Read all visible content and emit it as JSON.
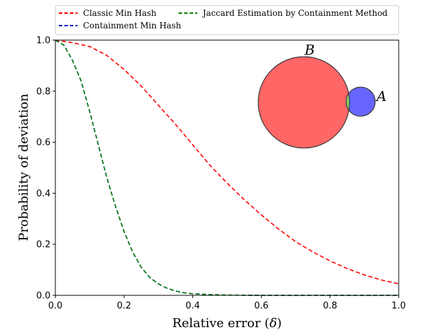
{
  "chart_data": {
    "type": "line",
    "title": "",
    "xlabel_main": "Relative error (",
    "xlabel_symbol": "δ",
    "xlabel_close": ")",
    "ylabel": "Probability of deviation",
    "xlim": [
      0.0,
      1.0
    ],
    "ylim": [
      0.0,
      1.0
    ],
    "xticks": [
      0.0,
      0.2,
      0.4,
      0.6,
      0.8,
      1.0
    ],
    "yticks": [
      0.0,
      0.2,
      0.4,
      0.6,
      0.8,
      1.0
    ],
    "xtick_labels": [
      "0.0",
      "0.2",
      "0.4",
      "0.6",
      "0.8",
      "1.0"
    ],
    "ytick_labels": [
      "0.0",
      "0.2",
      "0.4",
      "0.6",
      "0.8",
      "1.0"
    ],
    "grid": false,
    "legend_position": "top",
    "series": [
      {
        "name": "Classic Min Hash",
        "color": "#ff0000",
        "style": "dashed",
        "x": [
          0.0,
          0.05,
          0.1,
          0.15,
          0.2,
          0.25,
          0.3,
          0.35,
          0.4,
          0.45,
          0.5,
          0.55,
          0.6,
          0.65,
          0.7,
          0.75,
          0.8,
          0.85,
          0.9,
          0.95,
          1.0
        ],
        "y": [
          1.0,
          0.99,
          0.975,
          0.94,
          0.885,
          0.82,
          0.745,
          0.67,
          0.59,
          0.51,
          0.44,
          0.375,
          0.315,
          0.26,
          0.21,
          0.17,
          0.135,
          0.105,
          0.08,
          0.06,
          0.045
        ]
      },
      {
        "name": "Containment Min Hash",
        "color": "#0000cc",
        "style": "dashed",
        "x": [
          0.0,
          0.025,
          0.05,
          0.075,
          0.1,
          0.125,
          0.15,
          0.175,
          0.2,
          0.225,
          0.25,
          0.275,
          0.3,
          0.325,
          0.35,
          0.375,
          0.4,
          0.45,
          0.5,
          0.6,
          0.7,
          0.8,
          0.9,
          1.0
        ],
        "y": [
          1.0,
          0.98,
          0.92,
          0.84,
          0.72,
          0.59,
          0.46,
          0.35,
          0.25,
          0.17,
          0.11,
          0.07,
          0.045,
          0.028,
          0.017,
          0.01,
          0.006,
          0.003,
          0.001,
          0.0,
          0.0,
          0.0,
          0.0,
          0.0
        ]
      },
      {
        "name": "Jaccard Estimation by Containment Method",
        "color": "#008000",
        "style": "dashed",
        "x": [
          0.0,
          0.025,
          0.05,
          0.075,
          0.1,
          0.125,
          0.15,
          0.175,
          0.2,
          0.225,
          0.25,
          0.275,
          0.3,
          0.325,
          0.35,
          0.375,
          0.4,
          0.45,
          0.5,
          0.6,
          0.7,
          0.8,
          0.9,
          1.0
        ],
        "y": [
          1.0,
          0.98,
          0.92,
          0.84,
          0.72,
          0.59,
          0.46,
          0.35,
          0.25,
          0.17,
          0.11,
          0.07,
          0.045,
          0.028,
          0.017,
          0.01,
          0.006,
          0.003,
          0.001,
          0.0,
          0.0,
          0.0,
          0.0,
          0.0
        ]
      }
    ],
    "legend": [
      {
        "label": "Classic Min Hash",
        "color": "#ff0000"
      },
      {
        "label": "Containment Min Hash",
        "color": "#0000cc"
      },
      {
        "label": "Jaccard Estimation by Containment Method",
        "color": "#008000"
      }
    ],
    "venn_inset": {
      "set_large": {
        "label": "B",
        "color": "#ff6666"
      },
      "set_small": {
        "label": "A",
        "color": "#6666ff"
      },
      "intersection_color": "#88cc66"
    }
  }
}
